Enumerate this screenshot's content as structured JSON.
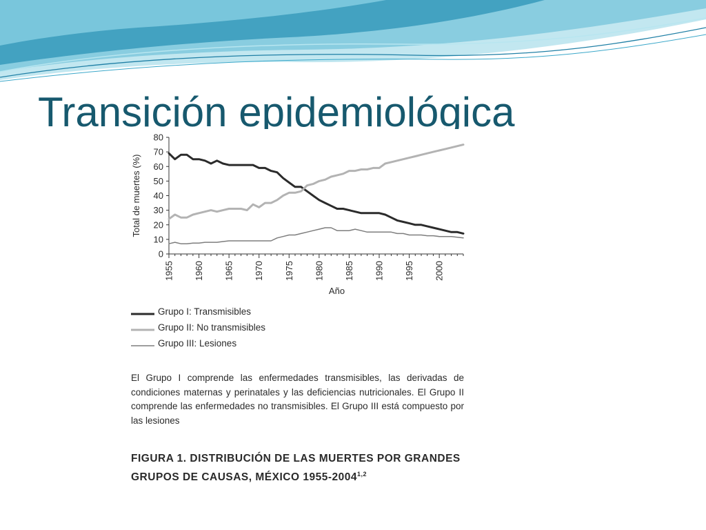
{
  "slide": {
    "title": "Transición epidemiológica"
  },
  "colors": {
    "title": "#17596e",
    "wave_dark": "#2c93b7",
    "wave_light": "#8fd3e3",
    "series_group1": "#2b2b2b",
    "series_group2": "#b3b3b3",
    "series_group3": "#7d7d7d"
  },
  "chart_data": {
    "type": "line",
    "xlabel": "Año",
    "ylabel": "Total de muertes (%)",
    "xlim": [
      1955,
      2004
    ],
    "ylim": [
      0,
      80
    ],
    "y_ticks": [
      "0",
      "10",
      "20",
      "30",
      "40",
      "50",
      "60",
      "70",
      "80"
    ],
    "x_ticks": [
      "1955",
      "1960",
      "1965",
      "1970",
      "1975",
      "1980",
      "1985",
      "1990",
      "1995",
      "2000"
    ],
    "legend": "below",
    "series": [
      {
        "name": "Grupo I: Transmisibles",
        "x": [
          1955,
          1956,
          1957,
          1958,
          1959,
          1960,
          1961,
          1962,
          1963,
          1964,
          1965,
          1966,
          1967,
          1968,
          1969,
          1970,
          1971,
          1972,
          1973,
          1974,
          1975,
          1976,
          1977,
          1978,
          1979,
          1980,
          1981,
          1982,
          1983,
          1984,
          1985,
          1986,
          1987,
          1988,
          1989,
          1990,
          1991,
          1992,
          1993,
          1994,
          1995,
          1996,
          1997,
          1998,
          1999,
          2000,
          2001,
          2002,
          2003,
          2004
        ],
        "values": [
          69,
          65,
          68,
          68,
          65,
          65,
          64,
          62,
          64,
          62,
          61,
          61,
          61,
          61,
          61,
          59,
          59,
          57,
          56,
          52,
          49,
          46,
          46,
          43,
          40,
          37,
          35,
          33,
          31,
          31,
          30,
          29,
          28,
          28,
          28,
          28,
          27,
          25,
          23,
          22,
          21,
          20,
          20,
          19,
          18,
          17,
          16,
          15,
          15,
          14
        ]
      },
      {
        "name": "Grupo II: No transmisibles",
        "x": [
          1955,
          1956,
          1957,
          1958,
          1959,
          1960,
          1961,
          1962,
          1963,
          1964,
          1965,
          1966,
          1967,
          1968,
          1969,
          1970,
          1971,
          1972,
          1973,
          1974,
          1975,
          1976,
          1977,
          1978,
          1979,
          1980,
          1981,
          1982,
          1983,
          1984,
          1985,
          1986,
          1987,
          1988,
          1989,
          1990,
          1991,
          1992,
          1993,
          1994,
          1995,
          1996,
          1997,
          1998,
          1999,
          2000,
          2001,
          2002,
          2003,
          2004
        ],
        "values": [
          24,
          27,
          25,
          25,
          27,
          28,
          29,
          30,
          29,
          30,
          31,
          31,
          31,
          30,
          34,
          32,
          35,
          35,
          37,
          40,
          42,
          42,
          43,
          47,
          48,
          50,
          51,
          53,
          54,
          55,
          57,
          57,
          58,
          58,
          59,
          59,
          62,
          63,
          64,
          65,
          66,
          67,
          68,
          69,
          70,
          71,
          72,
          73,
          74,
          75
        ]
      },
      {
        "name": "Grupo III: Lesiones",
        "x": [
          1955,
          1956,
          1957,
          1958,
          1959,
          1960,
          1961,
          1962,
          1963,
          1964,
          1965,
          1966,
          1967,
          1968,
          1969,
          1970,
          1971,
          1972,
          1973,
          1974,
          1975,
          1976,
          1977,
          1978,
          1979,
          1980,
          1981,
          1982,
          1983,
          1984,
          1985,
          1986,
          1987,
          1988,
          1989,
          1990,
          1991,
          1992,
          1993,
          1994,
          1995,
          1996,
          1997,
          1998,
          1999,
          2000,
          2001,
          2002,
          2003,
          2004
        ],
        "values": [
          7,
          8,
          7,
          7,
          7.5,
          7.5,
          8,
          8,
          8,
          8.5,
          9,
          9,
          9,
          9,
          9,
          9,
          9,
          9,
          11,
          12,
          13,
          13,
          14,
          15,
          16,
          17,
          18,
          18,
          16,
          16,
          16,
          17,
          16,
          15,
          15,
          15,
          15,
          15,
          14,
          14,
          13,
          13,
          13,
          12.5,
          12.5,
          12,
          12,
          12,
          11.5,
          11
        ]
      }
    ]
  },
  "caption": "El Grupo I comprende las enfermedades transmisibles, las derivadas de condiciones maternas y perinatales y las deficiencias nutricionales. El Grupo II comprende las enfermedades no transmisibles. El Grupo III está compuesto por las lesiones",
  "figure_caption": {
    "text": "FIGURA 1. DISTRIBUCIÓN DE LAS MUERTES POR GRANDES GRUPOS DE CAUSAS, MÉXICO 1955-2004",
    "superscript": "1,2"
  }
}
